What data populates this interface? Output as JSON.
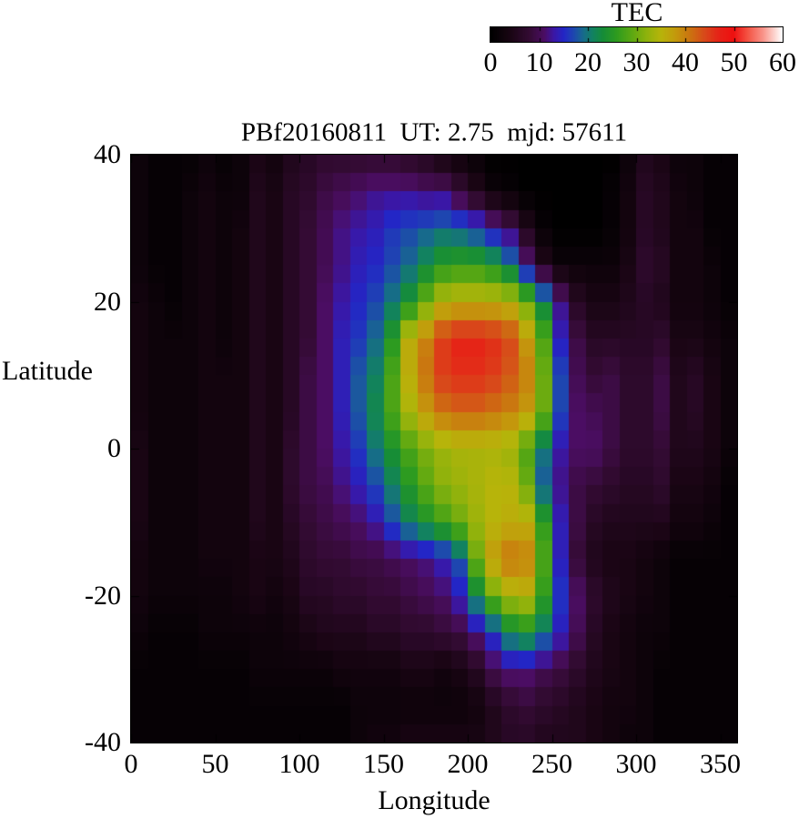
{
  "figure": {
    "title": "PBf20160811  UT: 2.75  mjd: 57611",
    "xlabel": "Longitude",
    "ylabel": "Latitude",
    "x_tick_labels": [
      "0",
      "50",
      "100",
      "150",
      "200",
      "250",
      "300",
      "350"
    ],
    "x_tick_values": [
      0,
      50,
      100,
      150,
      200,
      250,
      300,
      350
    ],
    "y_tick_labels": [
      "40",
      "20",
      "0",
      "-20",
      "-40"
    ],
    "y_tick_values": [
      40,
      20,
      0,
      -20,
      -40
    ],
    "colorbar": {
      "title": "TEC",
      "tick_labels": [
        "0",
        "10",
        "20",
        "30",
        "40",
        "50",
        "60"
      ],
      "tick_values": [
        0,
        10,
        20,
        30,
        40,
        50,
        60
      ],
      "minor_tick_values": [
        10,
        20,
        30,
        40,
        50
      ]
    }
  },
  "chart_data": {
    "type": "heatmap",
    "title": "PBf20160811  UT: 2.75  mjd: 57611",
    "xlabel": "Longitude",
    "ylabel": "Latitude",
    "colorbar_label": "TEC",
    "x_range": [
      0,
      360
    ],
    "y_range": [
      -40,
      40
    ],
    "value_range": [
      0,
      60
    ],
    "lon_cell_width_deg": 10,
    "lat_node_step_deg": 5,
    "lat_nodes_north_to_south": [
      40,
      35,
      30,
      25,
      20,
      15,
      10,
      5,
      0,
      -5,
      -10,
      -15,
      -20,
      -25,
      -30,
      -35,
      -40
    ],
    "lon_cell_centers": [
      5,
      15,
      25,
      35,
      45,
      55,
      65,
      75,
      85,
      95,
      105,
      115,
      125,
      135,
      145,
      155,
      165,
      175,
      185,
      195,
      205,
      215,
      225,
      235,
      245,
      255,
      265,
      275,
      285,
      295,
      305,
      315,
      325,
      335,
      345,
      355
    ],
    "palette_stops": [
      [
        0,
        "#000000"
      ],
      [
        4,
        "#190513"
      ],
      [
        8,
        "#340b34"
      ],
      [
        11,
        "#4b0d63"
      ],
      [
        13,
        "#3a17a6"
      ],
      [
        15,
        "#2326c6"
      ],
      [
        17,
        "#1e46b0"
      ],
      [
        19,
        "#176a8c"
      ],
      [
        21,
        "#128260"
      ],
      [
        23,
        "#158c38"
      ],
      [
        26,
        "#2f9c1e"
      ],
      [
        29,
        "#5ca812"
      ],
      [
        32,
        "#8db20c"
      ],
      [
        35,
        "#b7b40a"
      ],
      [
        38,
        "#c39a0c"
      ],
      [
        41,
        "#cb7410"
      ],
      [
        44,
        "#d8491a"
      ],
      [
        47,
        "#e62217"
      ],
      [
        50,
        "#ee1010"
      ],
      [
        53,
        "#f45545"
      ],
      [
        56,
        "#f99288"
      ],
      [
        58,
        "#fcc9c2"
      ],
      [
        60,
        "#ffffff"
      ]
    ],
    "tec_grid_rows_north_to_south": [
      [
        2,
        1,
        1,
        1,
        2,
        1,
        2,
        4,
        3,
        5,
        6,
        7,
        7,
        7,
        7,
        7,
        6,
        5,
        3,
        2,
        1,
        0,
        0,
        0,
        0,
        0,
        0,
        0,
        0,
        2,
        5,
        4,
        2,
        2,
        1,
        1
      ],
      [
        2,
        1,
        1,
        2,
        3,
        2,
        2,
        5,
        4,
        6,
        7,
        9,
        10,
        11,
        12,
        12,
        12,
        11,
        11,
        8,
        5,
        2,
        1,
        0,
        0,
        0,
        0,
        0,
        1,
        3,
        6,
        5,
        3,
        2,
        1,
        1
      ],
      [
        2,
        1,
        1,
        2,
        3,
        2,
        3,
        5,
        4,
        6,
        8,
        10,
        12,
        13,
        14,
        16,
        17,
        18,
        19,
        18,
        16,
        13,
        10,
        5,
        1,
        0,
        0,
        0,
        1,
        3,
        6,
        5,
        3,
        3,
        1,
        1
      ],
      [
        2,
        1,
        1,
        2,
        3,
        2,
        3,
        5,
        4,
        6,
        8,
        10,
        12,
        14,
        15,
        17,
        19,
        22,
        25,
        26,
        26,
        24,
        20,
        12,
        5,
        2,
        2,
        2,
        2,
        4,
        7,
        6,
        3,
        3,
        2,
        1
      ],
      [
        3,
        2,
        1,
        2,
        3,
        2,
        3,
        5,
        4,
        6,
        8,
        11,
        13,
        15,
        17,
        20,
        24,
        30,
        35,
        36,
        36,
        36,
        35,
        30,
        22,
        12,
        6,
        4,
        4,
        5,
        6,
        5,
        3,
        3,
        2,
        1
      ],
      [
        3,
        2,
        2,
        2,
        3,
        2,
        3,
        5,
        4,
        6,
        8,
        11,
        14,
        16,
        19,
        25,
        36,
        40,
        45,
        47,
        47,
        46,
        44,
        38,
        28,
        14,
        9,
        6,
        6,
        6,
        6,
        7,
        4,
        4,
        3,
        2
      ],
      [
        3,
        2,
        2,
        2,
        3,
        3,
        3,
        5,
        4,
        6,
        9,
        11,
        14,
        18,
        21,
        28,
        36,
        41,
        45,
        46,
        46,
        45,
        43,
        40,
        30,
        17,
        10,
        8,
        9,
        7,
        7,
        9,
        5,
        6,
        4,
        2
      ],
      [
        3,
        2,
        2,
        2,
        3,
        3,
        3,
        5,
        4,
        6,
        9,
        11,
        14,
        18,
        22,
        28,
        34,
        38,
        41,
        42,
        42,
        41,
        40,
        38,
        30,
        17,
        11,
        10,
        9,
        7,
        7,
        9,
        5,
        6,
        4,
        2
      ],
      [
        4,
        2,
        2,
        2,
        3,
        3,
        3,
        5,
        4,
        7,
        9,
        11,
        13,
        16,
        20,
        24,
        28,
        31,
        33,
        34,
        34,
        34,
        33,
        28,
        20,
        13,
        11,
        11,
        9,
        7,
        7,
        8,
        5,
        5,
        4,
        2
      ],
      [
        4,
        2,
        2,
        2,
        3,
        3,
        3,
        5,
        4,
        7,
        9,
        10,
        12,
        14,
        17,
        21,
        25,
        29,
        32,
        33,
        34,
        35,
        35,
        30,
        18,
        12,
        9,
        8,
        7,
        6,
        6,
        7,
        4,
        4,
        3,
        1
      ],
      [
        4,
        2,
        2,
        2,
        3,
        3,
        3,
        5,
        4,
        6,
        8,
        9,
        10,
        11,
        13,
        17,
        21,
        24,
        27,
        30,
        33,
        35,
        36,
        36,
        26,
        14,
        9,
        6,
        5,
        5,
        5,
        5,
        3,
        3,
        2,
        1
      ],
      [
        3,
        2,
        2,
        2,
        3,
        3,
        3,
        4,
        4,
        5,
        7,
        8,
        8,
        9,
        9,
        10,
        11,
        12,
        14,
        18,
        30,
        38,
        41,
        40,
        28,
        14,
        8,
        5,
        4,
        4,
        3,
        2,
        1,
        1,
        1,
        1
      ],
      [
        3,
        2,
        2,
        2,
        2,
        2,
        3,
        4,
        3,
        4,
        6,
        6,
        7,
        7,
        8,
        8,
        9,
        10,
        11,
        14,
        22,
        30,
        34,
        35,
        26,
        16,
        11,
        7,
        5,
        4,
        3,
        2,
        1,
        1,
        1,
        1
      ],
      [
        2,
        1,
        1,
        1,
        2,
        2,
        2,
        2,
        2,
        3,
        4,
        5,
        5,
        5,
        6,
        6,
        7,
        7,
        8,
        9,
        12,
        16,
        22,
        24,
        20,
        14,
        10,
        6,
        4,
        3,
        2,
        2,
        1,
        1,
        1,
        1
      ],
      [
        1,
        1,
        1,
        1,
        1,
        1,
        1,
        2,
        2,
        2,
        2,
        2,
        3,
        3,
        3,
        3,
        4,
        4,
        3,
        4,
        6,
        10,
        12,
        12,
        10,
        9,
        7,
        5,
        4,
        3,
        2,
        1,
        1,
        1,
        1,
        1
      ],
      [
        1,
        1,
        1,
        1,
        1,
        1,
        1,
        1,
        1,
        1,
        1,
        1,
        1,
        2,
        2,
        2,
        2,
        2,
        2,
        2,
        3,
        5,
        7,
        8,
        7,
        6,
        5,
        4,
        3,
        3,
        2,
        1,
        1,
        1,
        1,
        1
      ],
      [
        1,
        1,
        1,
        1,
        1,
        1,
        1,
        1,
        1,
        1,
        1,
        1,
        1,
        2,
        3,
        3,
        4,
        4,
        4,
        4,
        4,
        5,
        6,
        6,
        5,
        5,
        5,
        4,
        3,
        2,
        2,
        1,
        1,
        1,
        1,
        1
      ]
    ]
  }
}
